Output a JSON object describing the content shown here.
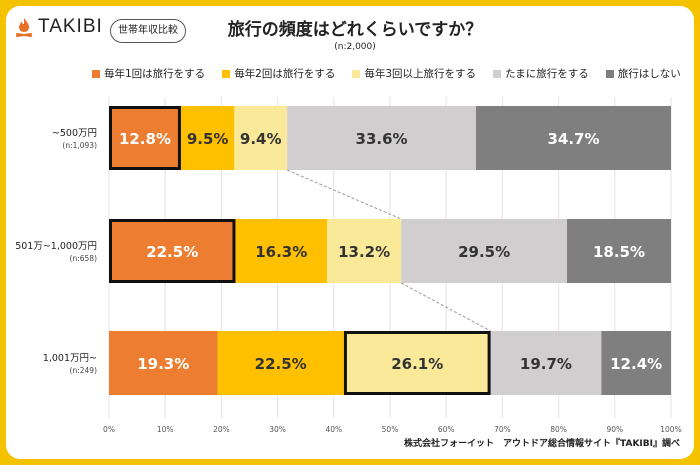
{
  "logo": {
    "text": "TAKIBI",
    "icon": "campfire-icon",
    "color": "#e8712a"
  },
  "badge": "世帯年収比較",
  "title": "旅行の頻度はどれくらいですか？",
  "subtitle": "(n:2,000)",
  "footer": "株式会社フォーイット　アウトドア総合情報サイト『TAKIBI』調べ",
  "chart_data": {
    "type": "bar",
    "orientation": "horizontal",
    "stacked": "100%",
    "legend": "top",
    "categories": [
      {
        "label": "~500万円",
        "n": "(n:1,093)"
      },
      {
        "label": "501万~1,000万円",
        "n": "(n:658)"
      },
      {
        "label": "1,001万円~",
        "n": "(n:249)"
      }
    ],
    "series": [
      {
        "name": "毎年1回は旅行をする",
        "color": "#ed7d31",
        "text_color": "#ffffff",
        "values": [
          12.8,
          22.5,
          19.3
        ]
      },
      {
        "name": "毎年2回は旅行をする",
        "color": "#ffc000",
        "text_color": "#333333",
        "values": [
          9.5,
          16.3,
          22.5
        ]
      },
      {
        "name": "毎年3回以上旅行をする",
        "color": "#fbe99a",
        "text_color": "#333333",
        "values": [
          9.4,
          13.2,
          26.1
        ]
      },
      {
        "name": "たまに旅行をする",
        "color": "#d0cece",
        "text_color": "#333333",
        "values": [
          33.6,
          29.5,
          19.7
        ]
      },
      {
        "name": "旅行はしない",
        "color": "#7f7f7f",
        "text_color": "#ffffff",
        "values": [
          34.7,
          18.5,
          12.4
        ]
      }
    ],
    "value_suffix": "%",
    "highlight": [
      {
        "row": 0,
        "series": 0
      },
      {
        "row": 1,
        "series": 0
      },
      {
        "row": 2,
        "series": 2
      }
    ],
    "xticks": [
      "0%",
      "10%",
      "20%",
      "30%",
      "40%",
      "50%",
      "60%",
      "70%",
      "80%",
      "90%",
      "100%"
    ],
    "xlim": [
      0,
      100
    ],
    "grid": true
  }
}
